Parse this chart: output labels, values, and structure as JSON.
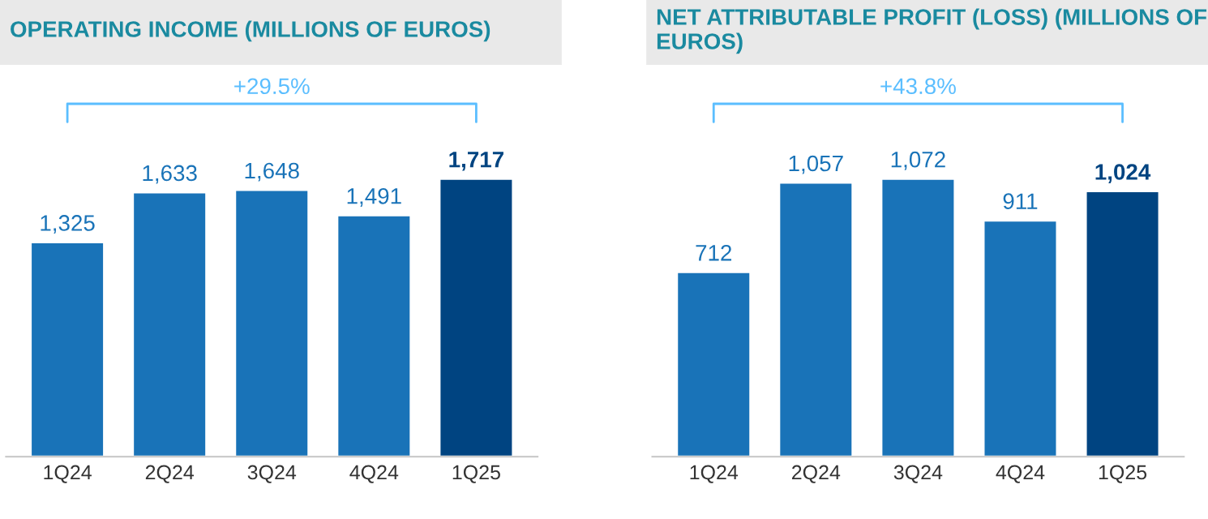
{
  "chart_data": [
    {
      "type": "bar",
      "title": "OPERATING INCOME (MILLIONS OF EUROS)",
      "categories": [
        "1Q24",
        "2Q24",
        "3Q24",
        "4Q24",
        "1Q25"
      ],
      "values": [
        1325,
        1633,
        1648,
        1491,
        1717
      ],
      "colors": [
        "#1973b8",
        "#1973b8",
        "#1973b8",
        "#1973b8",
        "#004481"
      ],
      "value_labels": [
        "1,325",
        "1,633",
        "1,648",
        "1,491",
        "1,717"
      ],
      "annotations": [
        "+29.5%"
      ]
    },
    {
      "type": "bar",
      "title": "NET ATTRIBUTABLE PROFIT (LOSS) (MILLIONS OF EUROS)",
      "categories": [
        "1Q24",
        "2Q24",
        "3Q24",
        "4Q24",
        "1Q25"
      ],
      "values": [
        712,
        1057,
        1072,
        911,
        1024
      ],
      "colors": [
        "#1973b8",
        "#1973b8",
        "#1973b8",
        "#1973b8",
        "#004481"
      ],
      "value_labels": [
        "712",
        "1,057",
        "1,072",
        "911",
        "1,024"
      ],
      "annotations": [
        "+43.8%"
      ]
    }
  ]
}
